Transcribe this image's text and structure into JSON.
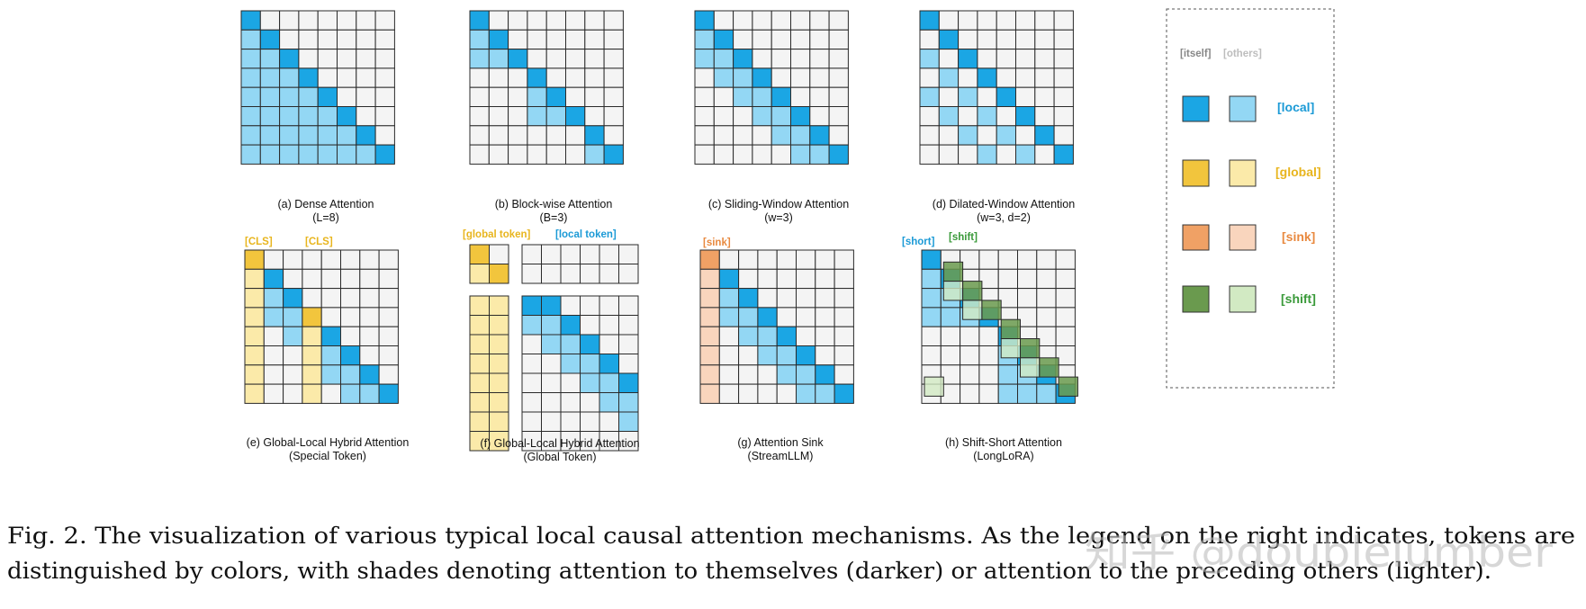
{
  "panels": [
    {
      "id": "a",
      "title": "(a) Dense Attention",
      "param": "(L=8)"
    },
    {
      "id": "b",
      "title": "(b) Block-wise Attention",
      "param": "(B=3)"
    },
    {
      "id": "c",
      "title": "(c) Sliding-Window Attention",
      "param": "(w=3)"
    },
    {
      "id": "d",
      "title": "(d) Dilated-Window Attention",
      "param": "(w=3, d=2)"
    },
    {
      "id": "e",
      "title": "(e) Global-Local Hybrid Attention",
      "param": "(Special Token)",
      "tags": [
        "[CLS]",
        "[CLS]"
      ]
    },
    {
      "id": "f",
      "title": "(f) Global-Local Hybrid Attention",
      "param": "(Global Token)",
      "tags": [
        "[global token]",
        "[local token]"
      ]
    },
    {
      "id": "g",
      "title": "(g) Attention Sink",
      "param": "(StreamLLM)",
      "tags": [
        "[sink]"
      ]
    },
    {
      "id": "h",
      "title": "(h) Shift-Short Attention",
      "param": "(LongLoRA)",
      "tags": [
        "[short]",
        "[shift]"
      ]
    }
  ],
  "legend": {
    "header_itself": "[itself]",
    "header_others": "[others]",
    "rows": [
      {
        "label": "[local]",
        "dark": "#1ba6e4",
        "light": "#93d7f4",
        "text_color": "#1b9ad6"
      },
      {
        "label": "[global]",
        "dark": "#f2c53d",
        "light": "#fbeaa9",
        "text_color": "#e8b51e"
      },
      {
        "label": "[sink]",
        "dark": "#f0a165",
        "light": "#f9d5bd",
        "text_color": "#e8893f"
      },
      {
        "label": "[shift]",
        "dark": "#6a9a4e",
        "light": "#d2eac3",
        "text_color": "#3a9a3a"
      }
    ]
  },
  "caption": {
    "line1": "Fig. 2.  The visualization of various typical local causal attention mechanisms. As the legend on the right indicates, tokens are",
    "line2": "distinguished by colors, with shades denoting attention to themselves (darker) or attention to the preceding others (lighter)."
  },
  "watermark": "知乎 @doublelumber"
}
